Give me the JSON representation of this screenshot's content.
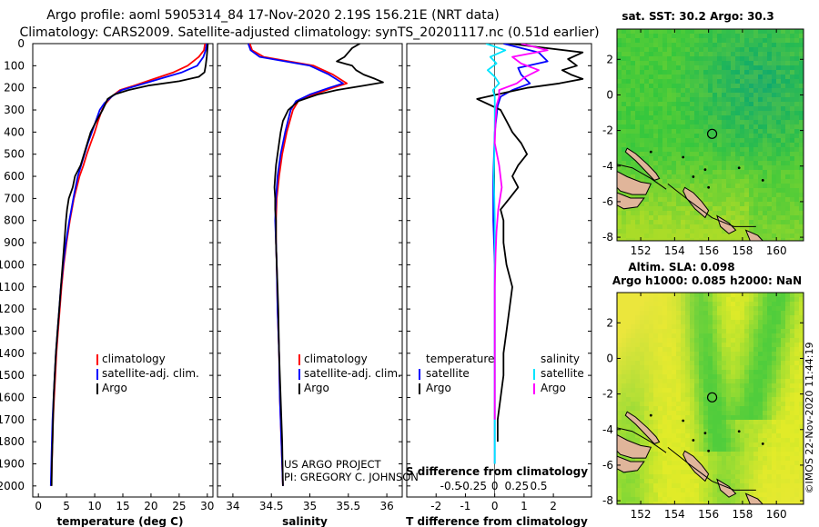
{
  "header": {
    "title_line1": "Argo profile: aoml 5905314_84 17-Nov-2020 2.19S 156.21E (NRT data)",
    "title_line2": "Climatology: CARS2009. Satellite-adjusted climatology: synTS_20201117.nc (0.51d earlier)"
  },
  "colors": {
    "climatology": "#ff0000",
    "satellite_adj": "#0000ff",
    "argo": "#000000",
    "salinity_sat": "#00e5ff",
    "salinity_argo": "#ff00ff",
    "land": "#e0b59a"
  },
  "depth_axis": {
    "ticks": [
      "0",
      "100",
      "200",
      "300",
      "400",
      "500",
      "600",
      "700",
      "800",
      "900",
      "1000",
      "1100",
      "1200",
      "1300",
      "1400",
      "1500",
      "1600",
      "1700",
      "1800",
      "1900",
      "2000"
    ],
    "range": [
      0,
      2050
    ]
  },
  "chart_data": [
    {
      "type": "line",
      "name": "temperature",
      "xlabel": "temperature (deg C)",
      "xlim": [
        -1,
        31
      ],
      "xticks": [
        "0",
        "5",
        "10",
        "15",
        "20",
        "25",
        "30"
      ],
      "xtick_values": [
        0,
        5,
        10,
        15,
        20,
        25,
        30
      ],
      "legend": [
        "climatology",
        "satellite-adj. clim.",
        "Argo"
      ],
      "series": [
        {
          "name": "climatology",
          "color": "#ff0000",
          "depth": [
            0,
            30,
            60,
            100,
            130,
            160,
            190,
            210,
            240,
            270,
            300,
            350,
            400,
            450,
            500,
            550,
            600,
            650,
            700,
            800,
            900,
            1000,
            1100,
            1200,
            1300,
            1400,
            1500,
            1600,
            1700,
            1800,
            1900,
            2000
          ],
          "values": [
            29.6,
            29.4,
            28.5,
            26.5,
            24,
            20.5,
            17,
            14.5,
            13,
            12,
            11.3,
            10.6,
            10,
            9.3,
            8.6,
            8,
            7.3,
            6.8,
            6.3,
            5.6,
            5,
            4.5,
            4.1,
            3.8,
            3.5,
            3.2,
            3,
            2.8,
            2.6,
            2.5,
            2.4,
            2.3
          ]
        },
        {
          "name": "satellite-adj. clim.",
          "color": "#0000ff",
          "depth": [
            0,
            30,
            60,
            100,
            130,
            160,
            190,
            210,
            240,
            270,
            300,
            350,
            400,
            450,
            500,
            550,
            600,
            650,
            700,
            800,
            900,
            1000,
            1100,
            1200,
            1300,
            1400,
            1500,
            1600,
            1700,
            1800,
            1900,
            2000
          ],
          "values": [
            29.9,
            29.7,
            29.3,
            28.2,
            25.5,
            21.5,
            17.5,
            14.8,
            13,
            11.7,
            10.9,
            10.2,
            9.5,
            8.8,
            8.2,
            7.6,
            7,
            6.6,
            6.2,
            5.5,
            4.9,
            4.4,
            4,
            3.7,
            3.4,
            3.1,
            2.9,
            2.7,
            2.5,
            2.4,
            2.3,
            2.2
          ]
        },
        {
          "name": "Argo",
          "color": "#000000",
          "depth": [
            0,
            30,
            60,
            100,
            130,
            150,
            170,
            190,
            210,
            230,
            250,
            300,
            350,
            400,
            450,
            500,
            550,
            600,
            650,
            700,
            750,
            800,
            900,
            1000,
            1100,
            1200,
            1300,
            1400,
            1500,
            1600,
            1700,
            1800,
            1900,
            2000
          ],
          "values": [
            30.1,
            30,
            29.9,
            29.7,
            29.5,
            28.5,
            25,
            19.5,
            16,
            13.5,
            12.3,
            11.4,
            10.3,
            9.3,
            8.7,
            8.1,
            7.5,
            6.5,
            6.1,
            5.4,
            5.1,
            4.9,
            4.6,
            4.3,
            4,
            3.7,
            3.4,
            3.1,
            2.9,
            2.7,
            2.6,
            2.5,
            2.4,
            2.35
          ]
        }
      ]
    },
    {
      "type": "line",
      "name": "salinity",
      "xlabel": "salinity",
      "xlim": [
        33.8,
        36.2
      ],
      "xticks": [
        "34",
        "34.5",
        "35",
        "35.5",
        "36"
      ],
      "xtick_values": [
        34,
        34.5,
        35,
        35.5,
        36
      ],
      "legend": [
        "climatology",
        "satellite-adj. clim.",
        "Argo"
      ],
      "series": [
        {
          "name": "climatology",
          "color": "#ff0000",
          "depth": [
            0,
            30,
            60,
            100,
            140,
            180,
            200,
            230,
            260,
            300,
            400,
            500,
            600,
            700,
            800,
            900,
            1000,
            1200,
            1400,
            1600,
            1800,
            2000
          ],
          "values": [
            34.22,
            34.25,
            34.4,
            35.05,
            35.3,
            35.48,
            35.3,
            35.05,
            34.85,
            34.78,
            34.7,
            34.64,
            34.6,
            34.57,
            34.56,
            34.56,
            34.57,
            34.58,
            34.6,
            34.61,
            34.63,
            34.65
          ]
        },
        {
          "name": "satellite-adj. clim.",
          "color": "#0000ff",
          "depth": [
            0,
            30,
            60,
            100,
            140,
            180,
            200,
            230,
            260,
            300,
            400,
            500,
            600,
            700,
            800,
            900,
            1000,
            1200,
            1400,
            1600,
            1800,
            2000
          ],
          "values": [
            34.2,
            34.23,
            34.35,
            35,
            35.25,
            35.43,
            35.25,
            35.0,
            34.82,
            34.75,
            34.68,
            34.62,
            34.58,
            34.56,
            34.55,
            34.56,
            34.57,
            34.58,
            34.6,
            34.61,
            34.63,
            34.65
          ]
        },
        {
          "name": "Argo",
          "color": "#000000",
          "depth": [
            0,
            20,
            40,
            60,
            80,
            100,
            120,
            140,
            160,
            175,
            190,
            210,
            230,
            260,
            300,
            350,
            400,
            450,
            500,
            550,
            600,
            650,
            700,
            750,
            800,
            900,
            1000,
            1100,
            1200,
            1400,
            1600,
            1800,
            2000
          ],
          "values": [
            35.65,
            35.55,
            35.5,
            35.45,
            35.35,
            35.55,
            35.6,
            35.7,
            35.85,
            35.95,
            35.7,
            35.35,
            35.1,
            34.85,
            34.72,
            34.65,
            34.62,
            34.6,
            34.58,
            34.56,
            34.55,
            34.54,
            34.55,
            34.55,
            34.56,
            34.56,
            34.57,
            34.58,
            34.59,
            34.6,
            34.62,
            34.64,
            34.65
          ]
        }
      ]
    },
    {
      "type": "line",
      "name": "difference",
      "xlabel": "T difference from climatology",
      "xlim": [
        -3,
        3.3
      ],
      "xticks": [
        "-2",
        "-1",
        "0",
        "1",
        "2"
      ],
      "xtick_values": [
        -2,
        -1,
        0,
        1,
        2
      ],
      "top_label": "S difference from climatology",
      "top_ticks": [
        "-0.5",
        "-0.25",
        "0",
        "0.25",
        "0.5"
      ],
      "top_tick_values": [
        -0.5,
        -0.25,
        0,
        0.25,
        0.5
      ],
      "salinity_scale": 3,
      "legend_temperature": [
        "temperature",
        "satellite",
        "Argo"
      ],
      "legend_salinity": [
        "salinity",
        "satellite",
        "Argo"
      ],
      "series": [
        {
          "name": "T satellite",
          "color": "#0000ff",
          "depth": [
            0,
            40,
            80,
            110,
            140,
            180,
            210,
            240,
            280,
            400,
            600,
            800,
            1000,
            1200,
            1400,
            1600,
            1800,
            1900
          ],
          "values": [
            0.3,
            1.5,
            1.8,
            0.8,
            0.9,
            1.2,
            0.6,
            0.2,
            0.1,
            0,
            -0.05,
            -0.05,
            0,
            0,
            0,
            0,
            0,
            0
          ]
        },
        {
          "name": "T Argo",
          "color": "#000000",
          "depth": [
            0,
            40,
            70,
            100,
            120,
            140,
            160,
            180,
            200,
            220,
            250,
            300,
            350,
            400,
            450,
            500,
            550,
            600,
            650,
            700,
            750,
            800,
            900,
            1000,
            1100,
            1200,
            1300,
            1400,
            1500,
            1600,
            1700,
            1800
          ],
          "values": [
            0.5,
            3,
            2.5,
            2.8,
            2.3,
            2.6,
            3,
            2.2,
            1.1,
            0.4,
            -0.6,
            0.2,
            0.4,
            0.6,
            0.9,
            1.1,
            0.8,
            0.6,
            0.8,
            0.5,
            0.2,
            0.3,
            0.3,
            0.4,
            0.6,
            0.5,
            0.4,
            0.3,
            0.3,
            0.2,
            0.1,
            0.1
          ]
        },
        {
          "name": "S satellite",
          "color": "#00e5ff",
          "depth": [
            0,
            30,
            60,
            90,
            120,
            150,
            180,
            210,
            240,
            280,
            400,
            600,
            800,
            1000,
            1200,
            1400,
            1600,
            1800,
            1900
          ],
          "values": [
            -0.1,
            0.12,
            -0.05,
            0.02,
            -0.08,
            0,
            0.05,
            -0.02,
            0,
            0.0,
            0,
            -0.01,
            0,
            0,
            0,
            0,
            0,
            0,
            0
          ]
        },
        {
          "name": "S Argo",
          "color": "#ff00ff",
          "depth": [
            0,
            30,
            60,
            90,
            120,
            150,
            180,
            210,
            240,
            280,
            350,
            450,
            550,
            650,
            750,
            850,
            950,
            1100,
            1300,
            1500,
            1700
          ],
          "values": [
            0.3,
            0.6,
            0.2,
            0.3,
            0.5,
            0.35,
            0.25,
            0.05,
            0.05,
            0.02,
            0.01,
            0,
            0.05,
            0.08,
            0.04,
            0.02,
            0.01,
            0,
            0,
            0,
            0
          ]
        }
      ]
    },
    {
      "type": "heatmap",
      "name": "sst_map",
      "title": "sat. SST: 30.2 Argo: 30.3",
      "xticks": [
        "152",
        "154",
        "156",
        "158",
        "160"
      ],
      "xtick_values": [
        152,
        154,
        156,
        158,
        160
      ],
      "yticks": [
        "2",
        "0",
        "-2",
        "-4",
        "-6",
        "-8"
      ],
      "ytick_values": [
        2,
        0,
        -2,
        -4,
        -6,
        -8
      ],
      "xlim": [
        150.6,
        161.6
      ],
      "ylim": [
        -8.2,
        3.7
      ],
      "marker": {
        "lon": 156.21,
        "lat": -2.19
      }
    },
    {
      "type": "heatmap",
      "name": "sla_map",
      "title": "Altim. SLA: 0.098",
      "subtitle": "Argo h1000: 0.085 h2000: NaN",
      "xticks": [
        "152",
        "154",
        "156",
        "158",
        "160"
      ],
      "xtick_values": [
        152,
        154,
        156,
        158,
        160
      ],
      "yticks": [
        "2",
        "0",
        "-2",
        "-4",
        "-6",
        "-8"
      ],
      "ytick_values": [
        2,
        0,
        -2,
        -4,
        -6,
        -8
      ],
      "xlim": [
        150.6,
        161.6
      ],
      "ylim": [
        -8.2,
        3.7
      ],
      "marker": {
        "lon": 156.21,
        "lat": -2.19
      }
    }
  ],
  "credits": {
    "project": "US ARGO PROJECT",
    "pi": "PI: GREGORY C. JOHNSON",
    "imos": "©IMOS 22-Nov-2020 11:44:19"
  }
}
